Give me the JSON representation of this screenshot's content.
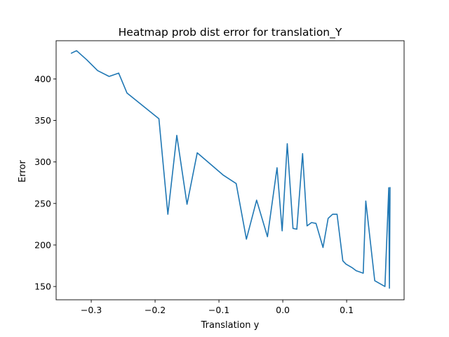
{
  "chart_data": {
    "type": "line",
    "title": "Heatmap prob dist error for translation_Y",
    "xlabel": "Translation y",
    "ylabel": "Error",
    "xlim": [
      -0.355,
      0.19
    ],
    "ylim": [
      134,
      446
    ],
    "xticks": [
      -0.3,
      -0.2,
      -0.1,
      0.0,
      0.1
    ],
    "xtick_labels": [
      "−0.3",
      "−0.2",
      "−0.1",
      "0.0",
      "0.1"
    ],
    "yticks": [
      150,
      200,
      250,
      300,
      350,
      400
    ],
    "ytick_labels": [
      "150",
      "200",
      "250",
      "300",
      "350",
      "400"
    ],
    "grid": false,
    "series": [
      {
        "color": "#1f77b4",
        "x": [
          -0.331,
          -0.323,
          -0.307,
          -0.29,
          -0.272,
          -0.257,
          -0.244,
          -0.194,
          -0.18,
          -0.166,
          -0.15,
          -0.134,
          -0.093,
          -0.073,
          -0.057,
          -0.041,
          -0.024,
          -0.009,
          -0.001,
          0.007,
          0.016,
          0.022,
          0.031,
          0.038,
          0.045,
          0.052,
          0.063,
          0.071,
          0.078,
          0.085,
          0.094,
          0.099,
          0.108,
          0.115,
          0.126,
          0.13,
          0.144,
          0.16,
          0.166,
          0.167,
          0.168
        ],
        "y": [
          431,
          434,
          423,
          410,
          403,
          407,
          383,
          352,
          237,
          332,
          249,
          311,
          284,
          274,
          207,
          254,
          210,
          293,
          217,
          322,
          220,
          219,
          310,
          223,
          227,
          226,
          197,
          232,
          237,
          237,
          181,
          177,
          173,
          169,
          166,
          253,
          157,
          150,
          269,
          148,
          269
        ]
      }
    ]
  }
}
